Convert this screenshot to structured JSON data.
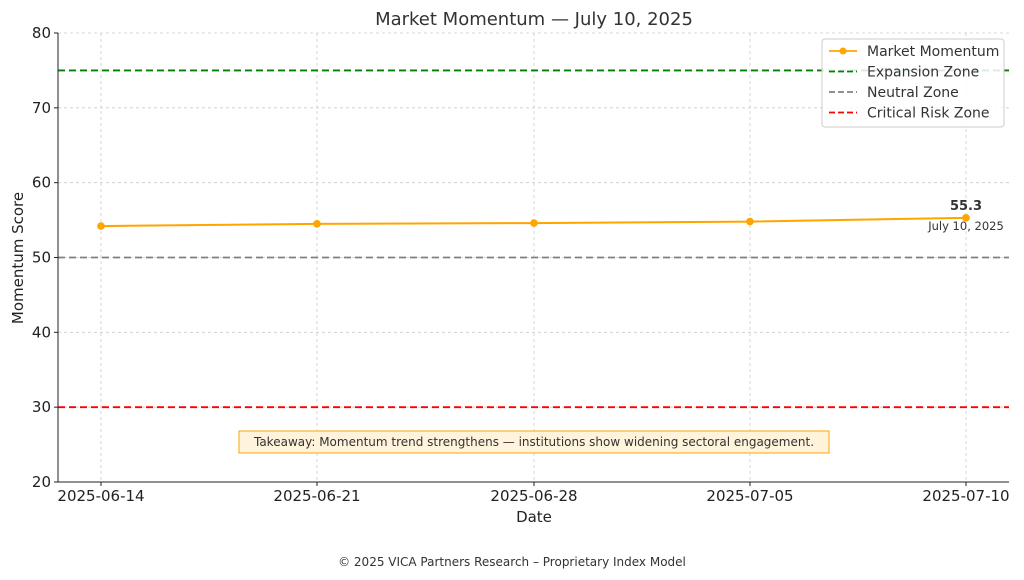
{
  "chart_data": {
    "type": "line",
    "title": "Market Momentum — July 10, 2025",
    "xlabel": "Date",
    "ylabel": "Momentum Score",
    "ylim": [
      20,
      80
    ],
    "yticks": [
      20,
      30,
      40,
      50,
      60,
      70,
      80
    ],
    "x": [
      "2025-06-14",
      "2025-06-21",
      "2025-06-28",
      "2025-07-05",
      "2025-07-10"
    ],
    "series": [
      {
        "name": "Market Momentum",
        "values": [
          54.2,
          54.5,
          54.6,
          54.8,
          55.3
        ],
        "color": "#ffa500"
      }
    ],
    "reference_lines": [
      {
        "name": "Expansion Zone",
        "value": 75,
        "color": "#008000"
      },
      {
        "name": "Neutral Zone",
        "value": 50,
        "color": "#808080"
      },
      {
        "name": "Critical Risk Zone",
        "value": 30,
        "color": "#ff0000"
      }
    ],
    "annotations": {
      "last_value": "55.3",
      "last_date": "July 10, 2025",
      "takeaway": "Takeaway: Momentum trend strengthens — institutions show widening sectoral engagement."
    },
    "grid": true,
    "legend_position": "top-right"
  },
  "footer": "© 2025 VICA Partners Research – Proprietary Index Model"
}
